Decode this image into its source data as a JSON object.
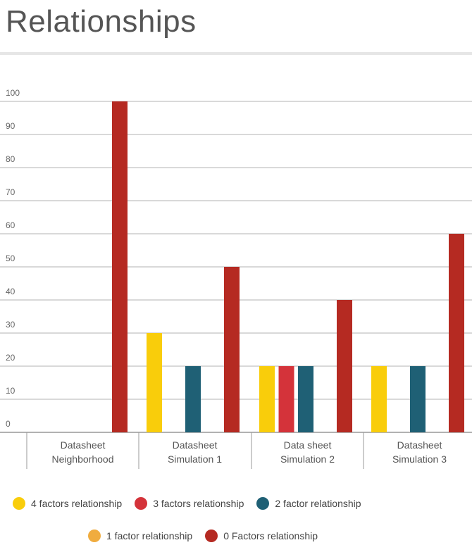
{
  "header": {
    "title": "Relationships"
  },
  "chart_data": {
    "type": "bar",
    "ylim": [
      0,
      100
    ],
    "yticks": [
      0,
      10,
      20,
      30,
      40,
      50,
      60,
      70,
      80,
      90,
      100
    ],
    "grid": true,
    "legend_position": "bottom",
    "categories": [
      [
        "Datasheet",
        "Neighborhood"
      ],
      [
        "Datasheet",
        "Simulation 1"
      ],
      [
        "Data sheet",
        "Simulation 2"
      ],
      [
        "Datasheet",
        "Simulation 3"
      ]
    ],
    "series": [
      {
        "name": "4 factors relationship",
        "color": "#f9cd0b",
        "values": [
          0,
          30,
          20,
          20
        ]
      },
      {
        "name": "3 factors relationship",
        "color": "#d4333a",
        "values": [
          0,
          0,
          20,
          0
        ]
      },
      {
        "name": "2 factor relationship",
        "color": "#1f6075",
        "values": [
          0,
          20,
          20,
          20
        ]
      },
      {
        "name": "1 factor relationship",
        "color": "#f0ac3f",
        "values": [
          0,
          0,
          0,
          0
        ]
      },
      {
        "name": "0 Factors relationship",
        "color": "#b52a22",
        "values": [
          100,
          50,
          40,
          60
        ]
      }
    ]
  }
}
